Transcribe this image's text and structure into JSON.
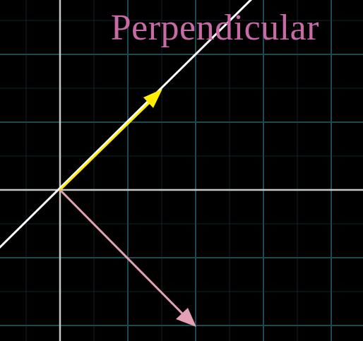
{
  "title": "Perpendicular",
  "colors": {
    "background": "#000000",
    "grid_major": "#1f4a52",
    "grid_minor": "#0f2428",
    "axes": "#c8c8c8",
    "title": "#c86aa6",
    "line": "#ffffff",
    "vector_yellow": "#ffee00",
    "vector_pink": "#e4a0b4"
  },
  "icons": {
    "vector_head": "arrowhead"
  }
}
